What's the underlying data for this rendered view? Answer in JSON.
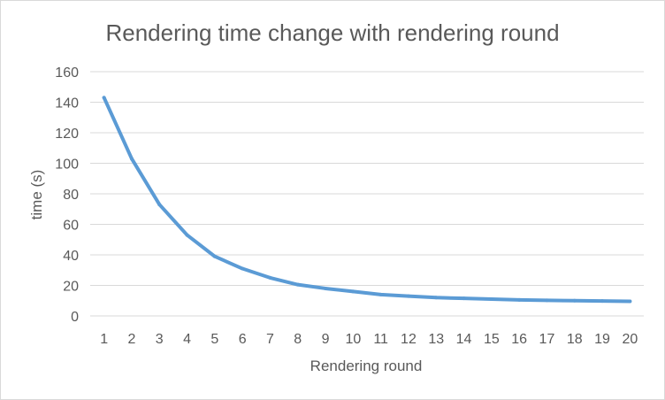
{
  "chart_data": {
    "type": "line",
    "title": "Rendering time change with rendering round",
    "xlabel": "Rendering round",
    "ylabel": "time (s)",
    "categories": [
      "1",
      "2",
      "3",
      "4",
      "5",
      "6",
      "7",
      "8",
      "9",
      "10",
      "11",
      "12",
      "13",
      "14",
      "15",
      "16",
      "17",
      "18",
      "19",
      "20"
    ],
    "yticks": [
      "0",
      "20",
      "40",
      "60",
      "80",
      "100",
      "120",
      "140",
      "160"
    ],
    "ylim": [
      0,
      160
    ],
    "grid": true,
    "legend": "none",
    "series": [
      {
        "values": [
          143,
          103,
          73,
          53,
          39,
          31,
          25,
          20.5,
          18,
          16,
          14,
          13,
          12,
          11.5,
          11,
          10.5,
          10.2,
          10,
          9.8,
          9.6
        ],
        "color": "#5b9bd5"
      }
    ]
  }
}
